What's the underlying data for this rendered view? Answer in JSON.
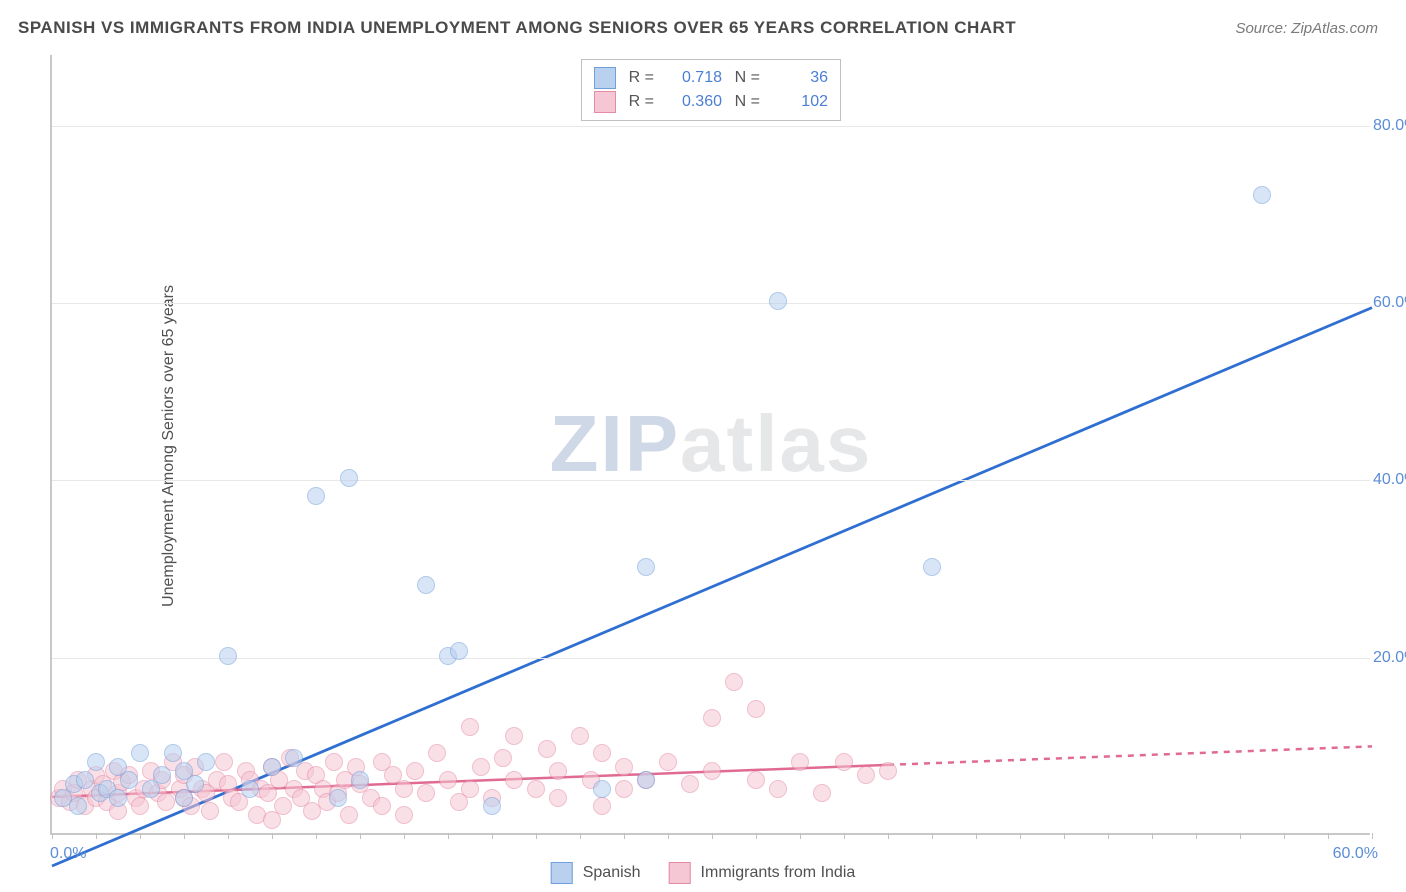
{
  "chart": {
    "type": "scatter",
    "title": "SPANISH VS IMMIGRANTS FROM INDIA UNEMPLOYMENT AMONG SENIORS OVER 65 YEARS CORRELATION CHART",
    "source": "Source: ZipAtlas.com",
    "ylabel": "Unemployment Among Seniors over 65 years",
    "watermark_a": "ZIP",
    "watermark_b": "atlas",
    "background_color": "#ffffff",
    "grid_color": "#e8e8e8",
    "axis_color": "#c8c8c8",
    "tick_label_color": "#5b8dd6",
    "text_color": "#505050",
    "title_fontsize": 17,
    "label_fontsize": 16,
    "xlim": [
      0,
      60
    ],
    "ylim": [
      0,
      88
    ],
    "xticks_minor_step": 2,
    "yticks": [
      20,
      40,
      60,
      80
    ],
    "ytick_labels": [
      "20.0%",
      "40.0%",
      "60.0%",
      "80.0%"
    ],
    "xtick_min_label": "0.0%",
    "xtick_max_label": "60.0%",
    "point_radius": 9,
    "point_opacity": 0.55,
    "series": [
      {
        "id": "spanish",
        "label": "Spanish",
        "color_fill": "#b9d0ef",
        "color_stroke": "#6f9fdc",
        "R": "0.718",
        "N": "36",
        "trend": {
          "slope": 1.05,
          "intercept": -3.5,
          "color": "#2f6fd1",
          "width": 2.8,
          "solid_to_x": 60
        },
        "points": [
          [
            0.5,
            4
          ],
          [
            1,
            5.5
          ],
          [
            1.2,
            3
          ],
          [
            1.5,
            6
          ],
          [
            2,
            8
          ],
          [
            2.2,
            4.5
          ],
          [
            2.5,
            5
          ],
          [
            3,
            7.5
          ],
          [
            3,
            4
          ],
          [
            3.5,
            6
          ],
          [
            4,
            9
          ],
          [
            4.5,
            5
          ],
          [
            5,
            6.5
          ],
          [
            5.5,
            9
          ],
          [
            6,
            7
          ],
          [
            6,
            4
          ],
          [
            6.5,
            5.5
          ],
          [
            7,
            8
          ],
          [
            8,
            20
          ],
          [
            9,
            5
          ],
          [
            10,
            7.5
          ],
          [
            11,
            8.5
          ],
          [
            12,
            38
          ],
          [
            13,
            4
          ],
          [
            13.5,
            40
          ],
          [
            14,
            6
          ],
          [
            17,
            28
          ],
          [
            18,
            20
          ],
          [
            18.5,
            20.5
          ],
          [
            20,
            3
          ],
          [
            25,
            5
          ],
          [
            27,
            30
          ],
          [
            27,
            6
          ],
          [
            33,
            60
          ],
          [
            40,
            30
          ],
          [
            55,
            72
          ]
        ]
      },
      {
        "id": "india",
        "label": "Immigrants from India",
        "color_fill": "#f5c6d3",
        "color_stroke": "#e68aa5",
        "R": "0.360",
        "N": "102",
        "trend": {
          "slope": 0.095,
          "intercept": 4.3,
          "color": "#e06a92",
          "width": 2.5,
          "solid_to_x": 38
        },
        "points": [
          [
            0.3,
            4
          ],
          [
            0.5,
            5
          ],
          [
            0.8,
            3.5
          ],
          [
            1,
            4.5
          ],
          [
            1.2,
            6
          ],
          [
            1.5,
            3
          ],
          [
            1.8,
            5
          ],
          [
            2,
            4
          ],
          [
            2,
            6.5
          ],
          [
            2.3,
            5.5
          ],
          [
            2.5,
            3.5
          ],
          [
            2.8,
            7
          ],
          [
            3,
            4.5
          ],
          [
            3,
            2.5
          ],
          [
            3.2,
            5.8
          ],
          [
            3.5,
            6.5
          ],
          [
            3.8,
            4
          ],
          [
            4,
            3
          ],
          [
            4.2,
            5
          ],
          [
            4.5,
            7
          ],
          [
            4.8,
            4.5
          ],
          [
            5,
            6
          ],
          [
            5.2,
            3.5
          ],
          [
            5.5,
            8
          ],
          [
            5.8,
            5
          ],
          [
            6,
            4
          ],
          [
            6,
            6.5
          ],
          [
            6.3,
            3
          ],
          [
            6.5,
            7.5
          ],
          [
            6.8,
            5
          ],
          [
            7,
            4.5
          ],
          [
            7.2,
            2.5
          ],
          [
            7.5,
            6
          ],
          [
            7.8,
            8
          ],
          [
            8,
            5.5
          ],
          [
            8.2,
            4
          ],
          [
            8.5,
            3.5
          ],
          [
            8.8,
            7
          ],
          [
            9,
            6
          ],
          [
            9.3,
            2
          ],
          [
            9.5,
            5
          ],
          [
            9.8,
            4.5
          ],
          [
            10,
            7.5
          ],
          [
            10,
            1.5
          ],
          [
            10.3,
            6
          ],
          [
            10.5,
            3
          ],
          [
            10.8,
            8.5
          ],
          [
            11,
            5
          ],
          [
            11.3,
            4
          ],
          [
            11.5,
            7
          ],
          [
            11.8,
            2.5
          ],
          [
            12,
            6.5
          ],
          [
            12.3,
            5
          ],
          [
            12.5,
            3.5
          ],
          [
            12.8,
            8
          ],
          [
            13,
            4.5
          ],
          [
            13.3,
            6
          ],
          [
            13.5,
            2
          ],
          [
            13.8,
            7.5
          ],
          [
            14,
            5.5
          ],
          [
            14.5,
            4
          ],
          [
            15,
            8
          ],
          [
            15,
            3
          ],
          [
            15.5,
            6.5
          ],
          [
            16,
            5
          ],
          [
            16,
            2
          ],
          [
            16.5,
            7
          ],
          [
            17,
            4.5
          ],
          [
            17.5,
            9
          ],
          [
            18,
            6
          ],
          [
            18.5,
            3.5
          ],
          [
            19,
            12
          ],
          [
            19,
            5
          ],
          [
            19.5,
            7.5
          ],
          [
            20,
            4
          ],
          [
            20.5,
            8.5
          ],
          [
            21,
            6
          ],
          [
            21,
            11
          ],
          [
            22,
            5
          ],
          [
            22.5,
            9.5
          ],
          [
            23,
            7
          ],
          [
            23,
            4
          ],
          [
            24,
            11
          ],
          [
            24.5,
            6
          ],
          [
            25,
            9
          ],
          [
            25,
            3
          ],
          [
            26,
            7.5
          ],
          [
            26,
            5
          ],
          [
            27,
            6
          ],
          [
            28,
            8
          ],
          [
            29,
            5.5
          ],
          [
            30,
            13
          ],
          [
            30,
            7
          ],
          [
            31,
            17
          ],
          [
            32,
            6
          ],
          [
            32,
            14
          ],
          [
            33,
            5
          ],
          [
            34,
            8
          ],
          [
            35,
            4.5
          ],
          [
            36,
            8
          ],
          [
            37,
            6.5
          ],
          [
            38,
            7
          ]
        ]
      }
    ],
    "legend_top": {
      "R_label": "R =",
      "N_label": "N ="
    },
    "legend_bottom_labels": [
      "Spanish",
      "Immigrants from India"
    ]
  }
}
